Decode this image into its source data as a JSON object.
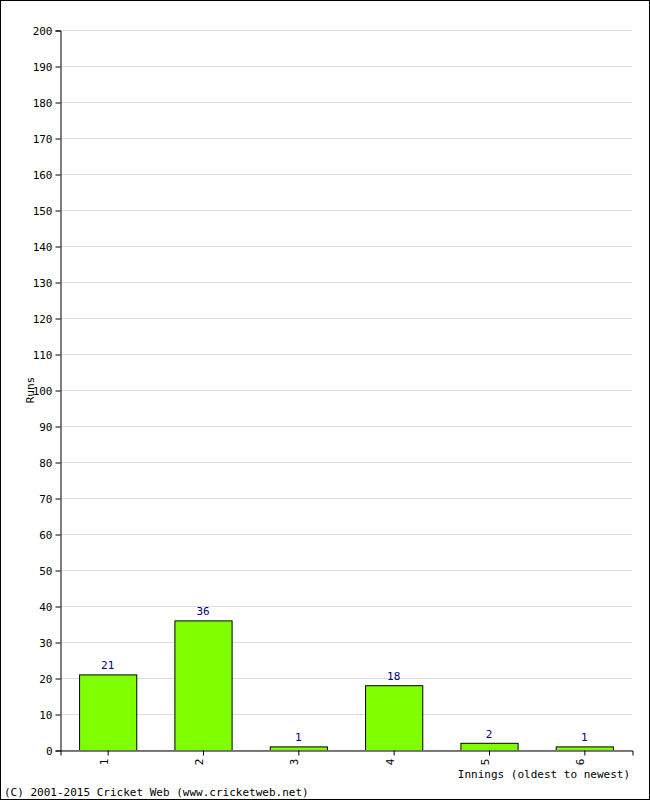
{
  "chart_data": {
    "type": "bar",
    "categories": [
      "1",
      "2",
      "3",
      "4",
      "5",
      "6"
    ],
    "values": [
      21,
      36,
      1,
      18,
      2,
      1
    ],
    "color": "#80ff00",
    "x_label": "Innings (oldest to newest)",
    "y_label": "Runs",
    "annotations": [
      "(C) 2001-2015 Cricket Web (www.cricketweb.net)"
    ],
    "ylim": [
      0,
      200
    ],
    "yticks": [
      0,
      10,
      20,
      30,
      40,
      50,
      60,
      70,
      80,
      90,
      100,
      110,
      120,
      130,
      140,
      150,
      160,
      170,
      180,
      190,
      200
    ],
    "grid": true,
    "data_labels": true
  }
}
